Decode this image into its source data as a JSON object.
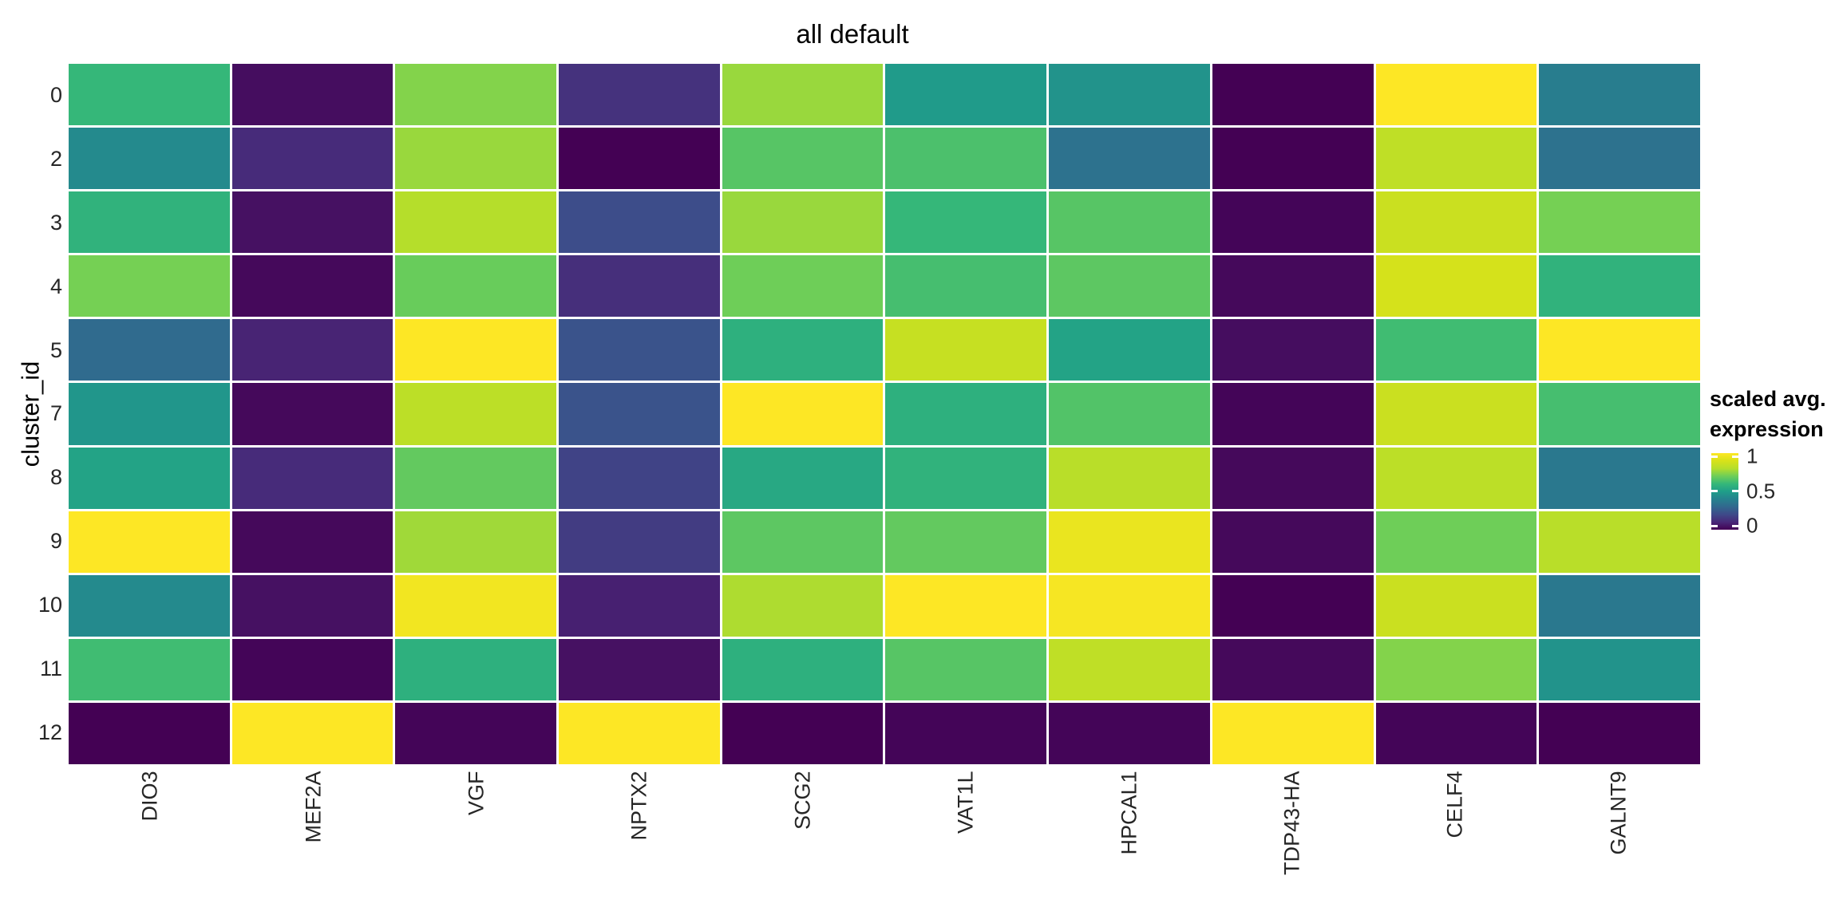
{
  "chart_data": {
    "type": "heatmap",
    "title": "all default",
    "xlabel": "",
    "ylabel": "cluster_id",
    "rows": [
      "0",
      "2",
      "3",
      "4",
      "5",
      "7",
      "8",
      "9",
      "10",
      "11",
      "12"
    ],
    "columns": [
      "DIO3",
      "MEF2A",
      "VGF",
      "NPTX2",
      "SCG2",
      "VAT1L",
      "HPCAL1",
      "TDP43-HA",
      "CELF4",
      "GALNT9"
    ],
    "values": [
      [
        0.6,
        0.03,
        0.73,
        0.13,
        0.76,
        0.49,
        0.46,
        0.0,
        1.0,
        0.38
      ],
      [
        0.43,
        0.11,
        0.76,
        0.0,
        0.66,
        0.64,
        0.34,
        0.0,
        0.83,
        0.34
      ],
      [
        0.58,
        0.04,
        0.8,
        0.21,
        0.76,
        0.6,
        0.66,
        0.01,
        0.86,
        0.71
      ],
      [
        0.71,
        0.02,
        0.69,
        0.12,
        0.7,
        0.63,
        0.67,
        0.02,
        0.89,
        0.58
      ],
      [
        0.31,
        0.09,
        1.0,
        0.23,
        0.57,
        0.85,
        0.52,
        0.03,
        0.62,
        1.0
      ],
      [
        0.47,
        0.02,
        0.82,
        0.23,
        1.0,
        0.57,
        0.65,
        0.01,
        0.86,
        0.63
      ],
      [
        0.52,
        0.11,
        0.68,
        0.18,
        0.54,
        0.58,
        0.81,
        0.02,
        0.82,
        0.36
      ],
      [
        1.0,
        0.02,
        0.77,
        0.16,
        0.67,
        0.68,
        0.95,
        0.02,
        0.7,
        0.81
      ],
      [
        0.43,
        0.04,
        0.97,
        0.08,
        0.79,
        1.0,
        0.98,
        0.0,
        0.86,
        0.36
      ],
      [
        0.62,
        0.01,
        0.57,
        0.04,
        0.57,
        0.66,
        0.83,
        0.02,
        0.73,
        0.46
      ],
      [
        0.0,
        1.0,
        0.01,
        1.0,
        0.0,
        0.01,
        0.01,
        1.0,
        0.01,
        0.0
      ]
    ],
    "value_range": [
      0,
      1
    ],
    "grid_gap_color": "#ffffff",
    "legend": {
      "title_lines": [
        "scaled avg.",
        "expression"
      ],
      "position": "right",
      "ticks": [
        {
          "value": 1.0,
          "label": "1"
        },
        {
          "value": 0.5,
          "label": "0.5"
        },
        {
          "value": 0.0,
          "label": "0"
        }
      ]
    },
    "colormap": {
      "name": "viridis",
      "stops": [
        [
          0.0,
          "#440154"
        ],
        [
          0.1,
          "#482878"
        ],
        [
          0.2,
          "#3e4a89"
        ],
        [
          0.3,
          "#31688e"
        ],
        [
          0.4,
          "#26828e"
        ],
        [
          0.5,
          "#1f9e89"
        ],
        [
          0.6,
          "#35b779"
        ],
        [
          0.7,
          "#6ece58"
        ],
        [
          0.8,
          "#b5de2b"
        ],
        [
          0.9,
          "#d8e219"
        ],
        [
          1.0,
          "#fde725"
        ]
      ]
    }
  }
}
